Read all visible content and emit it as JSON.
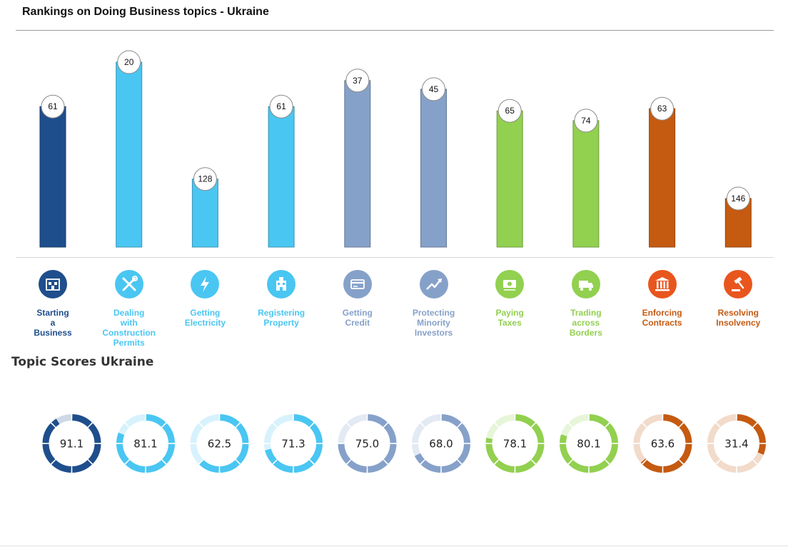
{
  "header": {
    "title": "Rankings on Doing Business topics - Ukraine"
  },
  "scores_section": {
    "title": "Topic Scores Ukraine"
  },
  "colors": {
    "dark_blue": "#1f4e8c",
    "light_blue": "#4ac6f2",
    "gray_blue": "#86a1c9",
    "green": "#92d050",
    "orange": "#c55a11"
  },
  "chart_data": [
    {
      "type": "bar",
      "title": "Rankings on Doing Business topics - Ukraine",
      "categories": [
        "Starting a Business",
        "Dealing with Construction Permits",
        "Getting Electricity",
        "Registering Property",
        "Getting Credit",
        "Protecting Minority Investors",
        "Paying Taxes",
        "Trading across Borders",
        "Enforcing Contracts",
        "Resolving Insolvency"
      ],
      "values": [
        61,
        20,
        128,
        61,
        37,
        45,
        65,
        74,
        63,
        146
      ],
      "value_note": "rank (lower rank draws a taller bar)",
      "grid": false
    },
    {
      "type": "pie",
      "subtype": "donut",
      "title": "Topic Scores Ukraine",
      "categories": [
        "Starting a Business",
        "Dealing with Construction Permits",
        "Getting Electricity",
        "Registering Property",
        "Getting Credit",
        "Protecting Minority Investors",
        "Paying Taxes",
        "Trading across Borders",
        "Enforcing Contracts",
        "Resolving Insolvency"
      ],
      "values": [
        91.1,
        81.1,
        62.5,
        71.3,
        75.0,
        68.0,
        78.1,
        80.1,
        63.6,
        31.4
      ],
      "labels": [
        "91.1",
        "81.1",
        "62.5",
        "71.3",
        "75.0",
        "68.0",
        "78.1",
        "80.1",
        "63.6",
        "31.4"
      ],
      "max": 100
    }
  ],
  "topics": [
    {
      "label": "Starting\na\nBusiness",
      "value_label": "61",
      "score_label": "91.1",
      "color": "#1f4e8c",
      "icon": "building-icon"
    },
    {
      "label": "Dealing\nwith\nConstruction\nPermits",
      "value_label": "20",
      "score_label": "81.1",
      "color": "#4ac6f2",
      "icon": "tools-icon"
    },
    {
      "label": "Getting\nElectricity",
      "value_label": "128",
      "score_label": "62.5",
      "color": "#4ac6f2",
      "icon": "lightning-icon"
    },
    {
      "label": "Registering\nProperty",
      "value_label": "61",
      "score_label": "71.3",
      "color": "#4ac6f2",
      "icon": "property-icon"
    },
    {
      "label": "Getting\nCredit",
      "value_label": "37",
      "score_label": "75.0",
      "color": "#86a1c9",
      "icon": "credit-card-icon"
    },
    {
      "label": "Protecting\nMinority\nInvestors",
      "value_label": "45",
      "score_label": "68.0",
      "color": "#86a1c9",
      "icon": "trend-up-icon"
    },
    {
      "label": "Paying\nTaxes",
      "value_label": "65",
      "score_label": "78.1",
      "color": "#92d050",
      "icon": "money-icon"
    },
    {
      "label": "Trading\nacross\nBorders",
      "value_label": "74",
      "score_label": "80.1",
      "color": "#92d050",
      "icon": "truck-icon"
    },
    {
      "label": "Enforcing\nContracts",
      "value_label": "63",
      "score_label": "63.6",
      "color": "#c55a11",
      "icon": "courthouse-icon"
    },
    {
      "label": "Resolving\nInsolvency",
      "value_label": "146",
      "score_label": "31.4",
      "color": "#c55a11",
      "icon": "gavel-icon"
    }
  ]
}
